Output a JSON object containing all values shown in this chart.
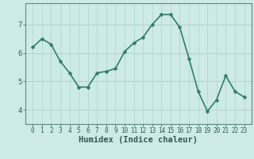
{
  "x": [
    0,
    1,
    2,
    3,
    4,
    5,
    6,
    7,
    8,
    9,
    10,
    11,
    12,
    13,
    14,
    15,
    16,
    17,
    18,
    19,
    20,
    21,
    22,
    23
  ],
  "y": [
    6.2,
    6.5,
    6.3,
    5.7,
    5.3,
    4.8,
    4.8,
    5.3,
    5.35,
    5.45,
    6.05,
    6.35,
    6.55,
    7.0,
    7.35,
    7.35,
    6.9,
    5.8,
    4.65,
    3.95,
    4.35,
    5.2,
    4.65,
    4.45
  ],
  "line_color": "#2e7d6e",
  "marker": "D",
  "marker_size": 2.5,
  "line_width": 1.2,
  "bg_color": "#ceeae6",
  "grid_color": "#b0d8d2",
  "xlabel": "Humidex (Indice chaleur)",
  "xlabel_fontsize": 7.5,
  "ylim": [
    3.5,
    7.75
  ],
  "yticks": [
    4,
    5,
    6,
    7
  ],
  "xticks": [
    0,
    1,
    2,
    3,
    4,
    5,
    6,
    7,
    8,
    9,
    10,
    11,
    12,
    13,
    14,
    15,
    16,
    17,
    18,
    19,
    20,
    21,
    22,
    23
  ],
  "tick_fontsize": 5.5,
  "spine_color": "#5a8a80"
}
